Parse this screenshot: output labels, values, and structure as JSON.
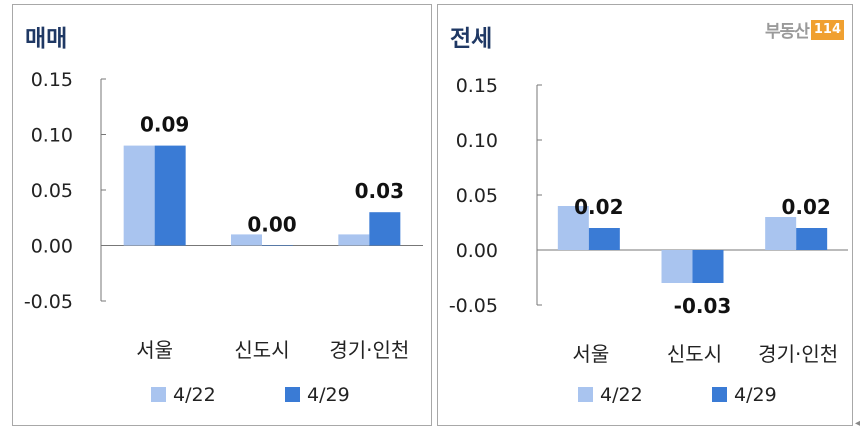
{
  "colors": {
    "series_1": "#a9c4ef",
    "series_2": "#3a7bd5",
    "negative_label": "#e03030",
    "title": "#1f3864"
  },
  "logo": {
    "text": "부동산",
    "badge": "114"
  },
  "chart_data": [
    {
      "type": "bar",
      "title": "매매",
      "categories": [
        "서울",
        "신도시",
        "경기·인천"
      ],
      "series": [
        {
          "name": "4/22",
          "values": [
            0.09,
            0.01,
            0.01
          ]
        },
        {
          "name": "4/29",
          "values": [
            0.09,
            0.0,
            0.03
          ]
        }
      ],
      "data_labels": [
        "0.09",
        "0.00",
        "0.03"
      ],
      "ylim": [
        -0.05,
        0.15
      ],
      "yticks": [
        "0.15",
        "0.10",
        "0.05",
        "0.00",
        "-0.05"
      ],
      "legend": "bottom",
      "grid": false
    },
    {
      "type": "bar",
      "title": "전세",
      "categories": [
        "서울",
        "신도시",
        "경기·인천"
      ],
      "series": [
        {
          "name": "4/22",
          "values": [
            0.04,
            -0.03,
            0.03
          ]
        },
        {
          "name": "4/29",
          "values": [
            0.02,
            -0.03,
            0.02
          ]
        }
      ],
      "data_labels": [
        "0.02",
        "-0.03",
        "0.02"
      ],
      "ylim": [
        -0.05,
        0.15
      ],
      "yticks": [
        "0.15",
        "0.10",
        "0.05",
        "0.00",
        "-0.05"
      ],
      "legend": "bottom",
      "grid": false
    }
  ]
}
